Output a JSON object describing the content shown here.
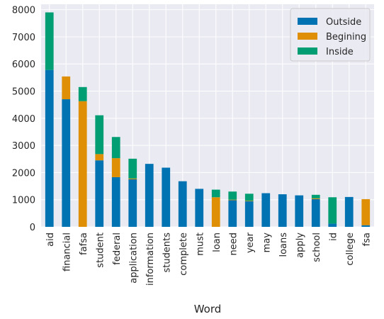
{
  "chart_data": {
    "type": "bar",
    "stacked": true,
    "title": "",
    "xlabel": "Word",
    "ylabel": "",
    "ylim": [
      0,
      8200
    ],
    "yticks": [
      0,
      1000,
      2000,
      3000,
      4000,
      5000,
      6000,
      7000,
      8000
    ],
    "grid": true,
    "legend_position": "top-right",
    "categories": [
      "aid",
      "financial",
      "fafsa",
      "student",
      "federal",
      "application",
      "information",
      "students",
      "complete",
      "must",
      "loan",
      "need",
      "year",
      "may",
      "loans",
      "apply",
      "school",
      "id",
      "college",
      "fsa"
    ],
    "series": [
      {
        "name": "Outside",
        "color": "#0173b2",
        "values": [
          5780,
          4700,
          0,
          2450,
          1830,
          1750,
          2320,
          2180,
          1680,
          1400,
          0,
          980,
          940,
          1240,
          1200,
          1160,
          1020,
          120,
          1100,
          60
        ]
      },
      {
        "name": "Begining",
        "color": "#de8f05",
        "values": [
          0,
          840,
          4630,
          230,
          700,
          30,
          0,
          0,
          0,
          0,
          1090,
          20,
          20,
          0,
          0,
          0,
          30,
          0,
          0,
          960
        ]
      },
      {
        "name": "Inside",
        "color": "#029e73",
        "values": [
          2120,
          0,
          520,
          1430,
          780,
          730,
          0,
          0,
          0,
          0,
          280,
          300,
          260,
          0,
          0,
          0,
          130,
          970,
          0,
          0
        ]
      }
    ]
  }
}
